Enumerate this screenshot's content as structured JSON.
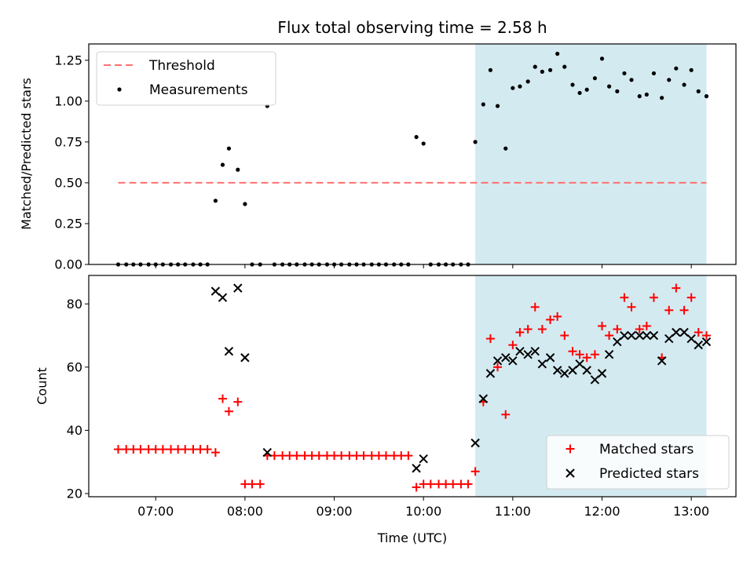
{
  "chart_data": [
    {
      "type": "scatter",
      "title": "Flux total observing time = 2.58 h",
      "xlabel": "",
      "ylabel": "Matched/Predicted stars",
      "ylim": [
        0,
        1.35
      ],
      "yticks": [
        "0.00",
        "0.25",
        "0.50",
        "0.75",
        "1.00",
        "1.25"
      ],
      "shaded_region": {
        "x_start": 10.58,
        "x_end": 13.17,
        "color": "#d3eaf0"
      },
      "threshold": {
        "name": "Threshold",
        "y": 0.5,
        "x_start": 6.58,
        "x_end": 13.17,
        "color": "#ff7070"
      },
      "series": [
        {
          "name": "Measurements",
          "marker": "dot",
          "color": "#000000",
          "x": [
            6.58,
            6.67,
            6.75,
            6.83,
            6.92,
            7.0,
            7.08,
            7.17,
            7.25,
            7.33,
            7.42,
            7.5,
            7.58,
            7.67,
            7.75,
            7.82,
            7.92,
            8.0,
            8.08,
            8.17,
            8.25,
            8.33,
            8.42,
            8.5,
            8.58,
            8.67,
            8.75,
            8.83,
            8.92,
            9.0,
            9.08,
            9.17,
            9.25,
            9.33,
            9.42,
            9.5,
            9.58,
            9.67,
            9.75,
            9.83,
            9.92,
            10.0,
            10.08,
            10.17,
            10.25,
            10.33,
            10.42,
            10.5,
            10.58,
            10.67,
            10.75,
            10.83,
            10.92,
            11.0,
            11.08,
            11.17,
            11.25,
            11.33,
            11.42,
            11.5,
            11.58,
            11.67,
            11.75,
            11.83,
            11.92,
            12.0,
            12.08,
            12.17,
            12.25,
            12.33,
            12.42,
            12.5,
            12.58,
            12.67,
            12.75,
            12.83,
            12.92,
            13.0,
            13.08,
            13.17
          ],
          "y": [
            0,
            0,
            0,
            0,
            0,
            0,
            0,
            0,
            0,
            0,
            0,
            0,
            0,
            0.39,
            0.61,
            0.71,
            0.58,
            0.37,
            0,
            0,
            0.97,
            0,
            0,
            0,
            0,
            0,
            0,
            0,
            0,
            0,
            0,
            0,
            0,
            0,
            0,
            0,
            0,
            0,
            0,
            0,
            0.78,
            0.74,
            0,
            0,
            0,
            0,
            0,
            0,
            0.75,
            0.98,
            1.19,
            0.97,
            0.71,
            1.08,
            1.09,
            1.12,
            1.21,
            1.18,
            1.19,
            1.29,
            1.21,
            1.1,
            1.05,
            1.07,
            1.14,
            1.26,
            1.09,
            1.06,
            1.17,
            1.13,
            1.03,
            1.04,
            1.17,
            1.02,
            1.13,
            1.2,
            1.1,
            1.19,
            1.06,
            1.03
          ]
        }
      ]
    },
    {
      "type": "scatter",
      "title": "",
      "xlabel": "Time (UTC)",
      "ylabel": "Count",
      "xlim": [
        6.25,
        13.5
      ],
      "xticks": [
        "07:00",
        "08:00",
        "09:00",
        "10:00",
        "11:00",
        "12:00",
        "13:00"
      ],
      "ylim": [
        19,
        89
      ],
      "yticks": [
        "20",
        "40",
        "60",
        "80"
      ],
      "shaded_region": {
        "x_start": 10.58,
        "x_end": 13.17,
        "color": "#d3eaf0"
      },
      "legend": "bottom-right",
      "series": [
        {
          "name": "Matched stars",
          "marker": "plus",
          "color": "#ff0000",
          "x": [
            6.58,
            6.67,
            6.75,
            6.83,
            6.92,
            7.0,
            7.08,
            7.17,
            7.25,
            7.33,
            7.42,
            7.5,
            7.58,
            7.67,
            7.75,
            7.82,
            7.92,
            8.0,
            8.08,
            8.17,
            8.25,
            8.33,
            8.42,
            8.5,
            8.58,
            8.67,
            8.75,
            8.83,
            8.92,
            9.0,
            9.08,
            9.17,
            9.25,
            9.33,
            9.42,
            9.5,
            9.58,
            9.67,
            9.75,
            9.83,
            9.92,
            10.0,
            10.08,
            10.17,
            10.25,
            10.33,
            10.42,
            10.5,
            10.58,
            10.67,
            10.75,
            10.83,
            10.92,
            11.0,
            11.08,
            11.17,
            11.25,
            11.33,
            11.42,
            11.5,
            11.58,
            11.67,
            11.75,
            11.83,
            11.92,
            12.0,
            12.08,
            12.17,
            12.25,
            12.33,
            12.42,
            12.5,
            12.58,
            12.67,
            12.75,
            12.83,
            12.92,
            13.0,
            13.08,
            13.17
          ],
          "y": [
            34,
            34,
            34,
            34,
            34,
            34,
            34,
            34,
            34,
            34,
            34,
            34,
            34,
            33,
            50,
            46,
            49,
            23,
            23,
            23,
            32,
            32,
            32,
            32,
            32,
            32,
            32,
            32,
            32,
            32,
            32,
            32,
            32,
            32,
            32,
            32,
            32,
            32,
            32,
            32,
            22,
            23,
            23,
            23,
            23,
            23,
            23,
            23,
            27,
            49,
            69,
            60,
            45,
            67,
            71,
            72,
            79,
            72,
            75,
            76,
            70,
            65,
            64,
            63,
            64,
            73,
            70,
            72,
            82,
            79,
            72,
            73,
            82,
            63,
            78,
            85,
            78,
            82,
            71,
            70
          ]
        },
        {
          "name": "Predicted stars",
          "marker": "x",
          "color": "#000000",
          "x": [
            7.67,
            7.75,
            7.82,
            7.92,
            8.0,
            8.25,
            9.92,
            10.0,
            10.58,
            10.67,
            10.75,
            10.83,
            10.92,
            11.0,
            11.08,
            11.17,
            11.25,
            11.33,
            11.42,
            11.5,
            11.58,
            11.67,
            11.75,
            11.83,
            11.92,
            12.0,
            12.08,
            12.17,
            12.25,
            12.33,
            12.42,
            12.5,
            12.58,
            12.67,
            12.75,
            12.83,
            12.92,
            13.0,
            13.08,
            13.17
          ],
          "y": [
            84,
            82,
            65,
            85,
            63,
            33,
            28,
            31,
            36,
            50,
            58,
            62,
            63,
            62,
            65,
            64,
            65,
            61,
            63,
            59,
            58,
            59,
            61,
            59,
            56,
            58,
            64,
            68,
            70,
            70,
            70,
            70,
            70,
            62,
            69,
            71,
            71,
            69,
            67,
            68
          ]
        }
      ]
    }
  ]
}
